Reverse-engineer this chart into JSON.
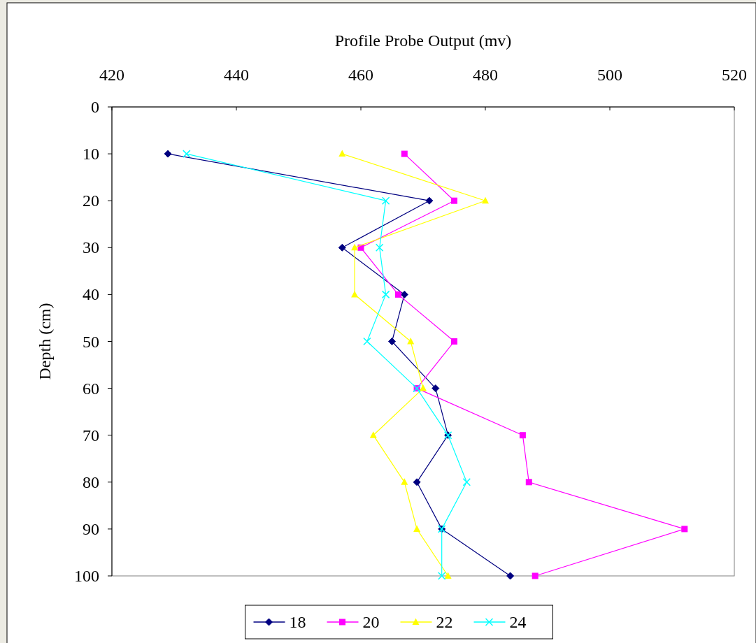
{
  "chart_data": {
    "type": "line",
    "xlabel": "Profile Probe Output (mv)",
    "ylabel": "Depth (cm)",
    "xlim": [
      420,
      520
    ],
    "xticks": [
      420,
      440,
      460,
      480,
      500,
      520
    ],
    "ylim": [
      100,
      0
    ],
    "yticks": [
      0,
      10,
      20,
      30,
      40,
      50,
      60,
      70,
      80,
      90,
      100
    ],
    "grid": false,
    "legend": "bottom",
    "line_style": "solid",
    "series": [
      {
        "name": "18",
        "color": "#000080",
        "marker": "diamond",
        "x": [
          429,
          471,
          457,
          467,
          465,
          472,
          474,
          469,
          473,
          484
        ],
        "values": [
          10,
          20,
          30,
          40,
          50,
          60,
          70,
          80,
          90,
          100
        ]
      },
      {
        "name": "20",
        "color": "#ff00ff",
        "marker": "square",
        "x": [
          467,
          475,
          460,
          466,
          475,
          469,
          486,
          487,
          512,
          488
        ],
        "values": [
          10,
          20,
          30,
          40,
          50,
          60,
          70,
          80,
          90,
          100
        ]
      },
      {
        "name": "22",
        "color": "#ffff00",
        "marker": "triangle",
        "x": [
          457,
          480,
          459,
          459,
          468,
          470,
          462,
          467,
          469,
          474
        ],
        "values": [
          10,
          20,
          30,
          40,
          50,
          60,
          70,
          80,
          90,
          100
        ]
      },
      {
        "name": "24",
        "color": "#00ffff",
        "marker": "cross",
        "x": [
          432,
          464,
          463,
          464,
          461,
          469,
          474,
          477,
          473,
          473
        ],
        "values": [
          10,
          20,
          30,
          40,
          50,
          60,
          70,
          80,
          90,
          100
        ]
      }
    ]
  }
}
